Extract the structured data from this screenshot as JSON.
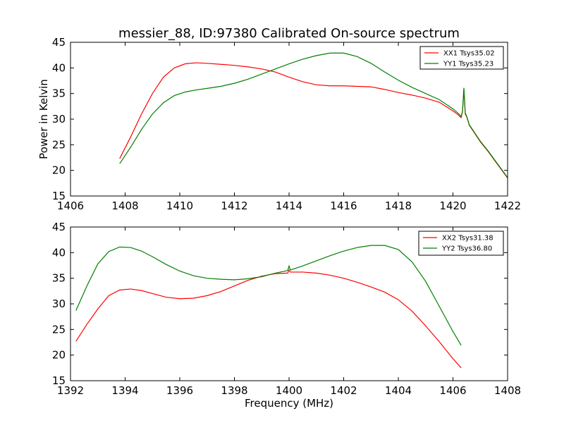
{
  "chart_data": [
    {
      "type": "line",
      "title": "messier_88, ID:97380 Calibrated On-source spectrum",
      "ylabel": "Power in Kelvin",
      "xlabel": "",
      "xlim": [
        1406,
        1422
      ],
      "ylim": [
        15,
        45
      ],
      "xticks": [
        "1406",
        "1408",
        "1410",
        "1412",
        "1414",
        "1416",
        "1418",
        "1420",
        "1422"
      ],
      "yticks": [
        "15",
        "20",
        "25",
        "30",
        "35",
        "40",
        "45"
      ],
      "legend_position": "top-right",
      "grid": false,
      "series": [
        {
          "name": "XX1 Tsys35.02",
          "color": "#ff0000",
          "x": [
            1407.8,
            1408.2,
            1408.6,
            1409.0,
            1409.4,
            1409.8,
            1410.2,
            1410.6,
            1411.0,
            1411.5,
            1412.0,
            1412.5,
            1413.0,
            1413.5,
            1414.0,
            1414.5,
            1415.0,
            1415.5,
            1416.0,
            1416.5,
            1417.0,
            1417.5,
            1418.0,
            1418.5,
            1419.0,
            1419.5,
            1420.0,
            1420.2,
            1420.3,
            1420.35,
            1420.4,
            1420.45,
            1420.5,
            1420.6,
            1420.8,
            1421.0,
            1421.3,
            1421.6,
            1422.0
          ],
          "values": [
            22.3,
            26.5,
            31.0,
            35.0,
            38.2,
            40.0,
            40.8,
            41.0,
            40.9,
            40.7,
            40.5,
            40.2,
            39.8,
            39.2,
            38.2,
            37.3,
            36.7,
            36.5,
            36.5,
            36.4,
            36.3,
            35.8,
            35.2,
            34.7,
            34.1,
            33.3,
            31.6,
            30.8,
            30.3,
            31.5,
            35.8,
            31.0,
            30.5,
            28.8,
            27.2,
            25.6,
            23.6,
            21.4,
            18.5
          ]
        },
        {
          "name": "YY1 Tsys35.23",
          "color": "#008000",
          "x": [
            1407.8,
            1408.2,
            1408.6,
            1409.0,
            1409.4,
            1409.8,
            1410.2,
            1410.6,
            1411.0,
            1411.5,
            1412.0,
            1412.5,
            1413.0,
            1413.5,
            1414.0,
            1414.5,
            1415.0,
            1415.5,
            1416.0,
            1416.5,
            1417.0,
            1417.5,
            1418.0,
            1418.5,
            1419.0,
            1419.5,
            1420.0,
            1420.2,
            1420.3,
            1420.35,
            1420.4,
            1420.45,
            1420.5,
            1420.6,
            1420.8,
            1421.0,
            1421.3,
            1421.6,
            1422.0
          ],
          "values": [
            21.3,
            24.5,
            28.0,
            31.0,
            33.2,
            34.6,
            35.3,
            35.7,
            36.0,
            36.4,
            37.0,
            37.8,
            38.8,
            39.8,
            40.8,
            41.7,
            42.4,
            42.9,
            42.9,
            42.2,
            40.9,
            39.2,
            37.6,
            36.2,
            35.0,
            33.8,
            32.0,
            31.1,
            30.5,
            31.6,
            36.1,
            31.2,
            30.6,
            28.9,
            27.3,
            25.7,
            23.7,
            21.5,
            18.6
          ]
        }
      ]
    },
    {
      "type": "line",
      "title": "",
      "ylabel": "",
      "xlabel": "Frequency (MHz)",
      "xlim": [
        1392,
        1408
      ],
      "ylim": [
        15,
        45
      ],
      "xticks": [
        "1392",
        "1394",
        "1396",
        "1398",
        "1400",
        "1402",
        "1404",
        "1406",
        "1408"
      ],
      "yticks": [
        "15",
        "20",
        "25",
        "30",
        "35",
        "40",
        "45"
      ],
      "legend_position": "top-right",
      "grid": false,
      "series": [
        {
          "name": "XX2 Tsys31.38",
          "color": "#ff0000",
          "x": [
            1392.2,
            1392.6,
            1393.0,
            1393.4,
            1393.8,
            1394.2,
            1394.6,
            1395.0,
            1395.5,
            1396.0,
            1396.5,
            1397.0,
            1397.5,
            1398.0,
            1398.5,
            1399.0,
            1399.5,
            1399.95,
            1400.0,
            1400.05,
            1400.5,
            1401.0,
            1401.5,
            1402.0,
            1402.5,
            1403.0,
            1403.5,
            1404.0,
            1404.5,
            1405.0,
            1405.5,
            1406.0,
            1406.3
          ],
          "values": [
            22.7,
            26.0,
            29.0,
            31.6,
            32.7,
            32.9,
            32.6,
            32.0,
            31.3,
            31.0,
            31.1,
            31.6,
            32.4,
            33.5,
            34.6,
            35.4,
            35.9,
            36.0,
            36.6,
            36.2,
            36.2,
            36.0,
            35.6,
            35.0,
            34.2,
            33.3,
            32.3,
            30.8,
            28.6,
            25.7,
            22.6,
            19.3,
            17.5
          ]
        },
        {
          "name": "YY2 Tsys36.80",
          "color": "#008000",
          "x": [
            1392.2,
            1392.6,
            1393.0,
            1393.4,
            1393.8,
            1394.2,
            1394.6,
            1395.0,
            1395.5,
            1396.0,
            1396.5,
            1397.0,
            1397.5,
            1398.0,
            1398.5,
            1399.0,
            1399.5,
            1399.95,
            1400.0,
            1400.05,
            1400.5,
            1401.0,
            1401.5,
            1402.0,
            1402.5,
            1403.0,
            1403.5,
            1404.0,
            1404.5,
            1405.0,
            1405.5,
            1406.0,
            1406.3
          ],
          "values": [
            28.7,
            33.5,
            37.8,
            40.2,
            41.1,
            41.0,
            40.3,
            39.2,
            37.7,
            36.4,
            35.5,
            35.0,
            34.8,
            34.7,
            34.9,
            35.3,
            36.0,
            36.5,
            37.4,
            36.6,
            37.4,
            38.4,
            39.4,
            40.3,
            41.0,
            41.4,
            41.4,
            40.6,
            38.2,
            34.4,
            29.5,
            24.6,
            21.9
          ]
        }
      ]
    }
  ]
}
